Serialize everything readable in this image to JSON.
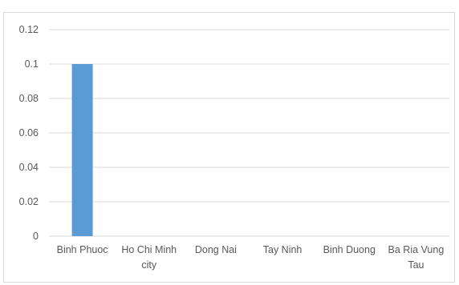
{
  "chart_data": {
    "type": "bar",
    "categories": [
      "Binh Phuoc",
      "Ho Chi Minh city",
      "Dong Nai",
      "Tay Ninh",
      "Binh Duong",
      "Ba Ria Vung Tau"
    ],
    "category_lines": [
      [
        "Binh Phuoc"
      ],
      [
        "Ho Chi Minh",
        "city"
      ],
      [
        "Dong Nai"
      ],
      [
        "Tay Ninh"
      ],
      [
        "Binh Duong"
      ],
      [
        "Ba Ria Vung",
        "Tau"
      ]
    ],
    "values": [
      0.1,
      0,
      0,
      0,
      0,
      0
    ],
    "ylim": [
      0,
      0.12
    ],
    "yticks": [
      "0",
      "0.02",
      "0.04",
      "0.06",
      "0.08",
      "0.1",
      "0.12"
    ],
    "grid": true,
    "bar_color": "#5b9bd5",
    "grid_color": "#d9d9d9",
    "title": "",
    "xlabel": "",
    "ylabel": ""
  }
}
